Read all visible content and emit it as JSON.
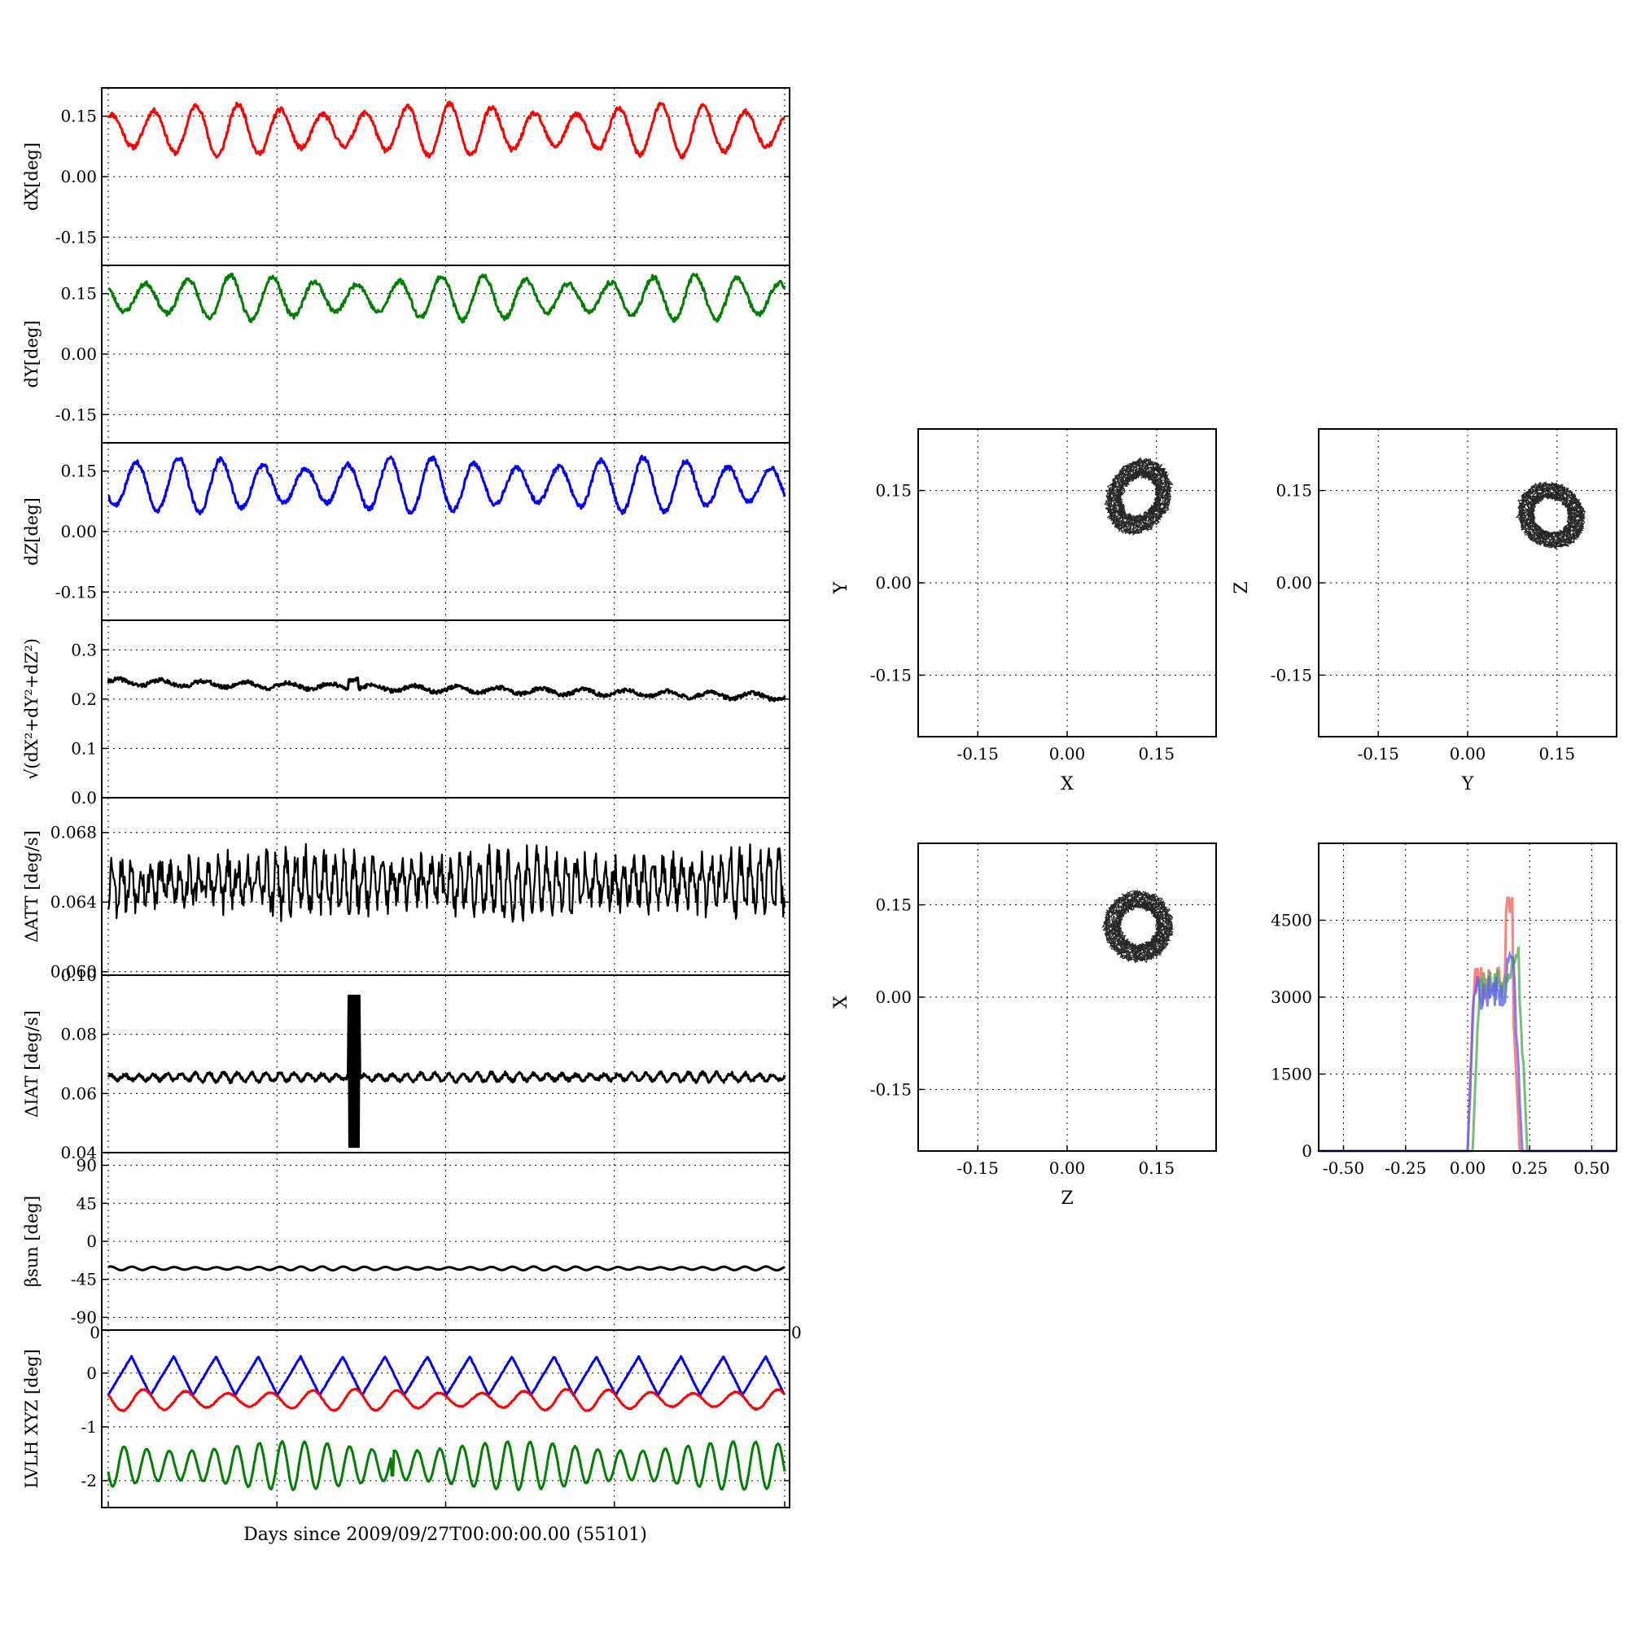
{
  "figure": {
    "xlabel": "Days since 2009/09/27T00:00:00.00 (55101)"
  },
  "chart_data": [
    {
      "id": "dx",
      "type": "line",
      "ylabel": "dX[deg]",
      "ylim": [
        -0.22,
        0.22
      ],
      "yticks": [
        "0.15",
        "0.00",
        "-0.15"
      ],
      "ytick_values": [
        0.15,
        0.0,
        -0.15
      ],
      "series": [
        {
          "color": "#ff0000",
          "mean": 0.115,
          "amp": 0.052,
          "cycles": 16,
          "noise": 0.006,
          "seed": 11
        }
      ],
      "grid": true
    },
    {
      "id": "dy",
      "type": "line",
      "ylabel": "dY[deg]",
      "ylim": [
        -0.22,
        0.22
      ],
      "yticks": [
        "0.15",
        "0.00",
        "-0.15"
      ],
      "ytick_values": [
        0.15,
        0.0,
        -0.15
      ],
      "series": [
        {
          "color": "#008000",
          "mean": 0.14,
          "amp": 0.045,
          "cycles": 16,
          "noise": 0.006,
          "seed": 23
        }
      ],
      "grid": true
    },
    {
      "id": "dz",
      "type": "line",
      "ylabel": "dZ[deg]",
      "ylim": [
        -0.22,
        0.22
      ],
      "yticks": [
        "0.15",
        "0.00",
        "-0.15"
      ],
      "ytick_values": [
        0.15,
        0.0,
        -0.15
      ],
      "series": [
        {
          "color": "#0000ff",
          "mean": 0.115,
          "amp": 0.055,
          "cycles": 16,
          "noise": 0.006,
          "seed": 37
        }
      ],
      "grid": true
    },
    {
      "id": "dtot",
      "type": "line",
      "ylabel": "√(dX²+dY²+dZ²)",
      "ylim": [
        0.0,
        0.36
      ],
      "yticks": [
        "0.3",
        "0.2",
        "0.1",
        "0.0"
      ],
      "ytick_values": [
        0.3,
        0.2,
        0.1,
        0.0
      ],
      "series": [
        {
          "color": "#000000",
          "start": 0.235,
          "end": 0.205,
          "amp": 0.006,
          "cycles": 16,
          "noise": 0.004,
          "seed": 41
        }
      ],
      "grid": true
    },
    {
      "id": "datt",
      "type": "line",
      "ylabel": "ΔATT [deg/s]",
      "ylim": [
        0.0598,
        0.07
      ],
      "yticks": [
        "0.068",
        "0.064",
        "0.060"
      ],
      "ytick_values": [
        0.068,
        0.064,
        0.06
      ],
      "series": [
        {
          "color": "#000000",
          "mean": 0.0651,
          "amp": 0.0012,
          "cycles": 70,
          "noise": 0.0009,
          "seed": 53
        }
      ],
      "grid": true
    },
    {
      "id": "diat",
      "type": "line",
      "ylabel": "ΔIAT [deg/s]",
      "ylim": [
        0.04,
        0.1
      ],
      "yticks": [
        "0.10",
        "0.08",
        "0.06",
        "0.04"
      ],
      "ytick_values": [
        0.1,
        0.08,
        0.06,
        0.04
      ],
      "series": [
        {
          "color": "#000000",
          "mean": 0.0655,
          "amp": 0.0012,
          "cycles": 48,
          "noise": 0.0006,
          "seed": 67,
          "burst": [
            0.355,
            0.372
          ]
        }
      ],
      "grid": true
    },
    {
      "id": "beta",
      "type": "line",
      "ylabel": "βsun [deg]",
      "ylim": [
        -105,
        105
      ],
      "yticks": [
        "90",
        "45",
        "0",
        "-45",
        "-90"
      ],
      "ytick_values": [
        90,
        45,
        0,
        -45,
        -90
      ],
      "series": [
        {
          "color": "#000000",
          "mean": -32,
          "amp": 1.8,
          "cycles": 32,
          "noise": 0.0,
          "seed": 71
        }
      ],
      "grid": true
    },
    {
      "id": "lvlh",
      "type": "line",
      "ylabel": "LVLH XYZ [deg]",
      "ylim": [
        -2.5,
        0.8
      ],
      "yticks": [
        "0",
        "-1",
        "-2"
      ],
      "ytick_values": [
        0,
        -1,
        -2
      ],
      "extra_tick": "0",
      "series": [
        {
          "color": "#0000ff",
          "mean": -0.05,
          "amp": 0.6,
          "cycles": 16,
          "noise": 0.01,
          "seed": 83,
          "shape": "saw"
        },
        {
          "color": "#ff0000",
          "mean": -0.5,
          "amp": 0.16,
          "cycles": 16,
          "noise": 0.01,
          "seed": 89,
          "shape": "sin"
        },
        {
          "color": "#008000",
          "mean": -1.72,
          "amp": 0.36,
          "cycles": 30,
          "noise": 0.01,
          "seed": 97,
          "shape": "sin",
          "spike": 0.42
        }
      ],
      "grid": true
    },
    {
      "id": "xy",
      "type": "scatter",
      "xlabel": "X",
      "ylabel": "Y",
      "xlim": [
        -0.25,
        0.25
      ],
      "ylim": [
        -0.25,
        0.25
      ],
      "xticks": [
        "-0.15",
        "0.00",
        "0.15"
      ],
      "yticks": [
        "0.15",
        "0.00",
        "-0.15"
      ],
      "tick_values": [
        -0.15,
        0.0,
        0.15
      ],
      "center": [
        0.12,
        0.14
      ],
      "radius": [
        0.045,
        0.055
      ],
      "tilt": -0.5,
      "grid": true
    },
    {
      "id": "yz",
      "type": "scatter",
      "xlabel": "Y",
      "ylabel": "Z",
      "xlim": [
        -0.25,
        0.25
      ],
      "ylim": [
        -0.25,
        0.25
      ],
      "xticks": [
        "-0.15",
        "0.00",
        "0.15"
      ],
      "yticks": [
        "0.15",
        "0.00",
        "-0.15"
      ],
      "tick_values": [
        -0.15,
        0.0,
        0.15
      ],
      "center": [
        0.14,
        0.11
      ],
      "radius": [
        0.05,
        0.045
      ],
      "tilt": -0.6,
      "grid": true
    },
    {
      "id": "zx",
      "type": "scatter",
      "xlabel": "Z",
      "ylabel": "X",
      "xlim": [
        -0.25,
        0.25
      ],
      "ylim": [
        -0.25,
        0.25
      ],
      "xticks": [
        "-0.15",
        "0.00",
        "0.15"
      ],
      "yticks": [
        "0.15",
        "0.00",
        "-0.15"
      ],
      "tick_values": [
        -0.15,
        0.0,
        0.15
      ],
      "center": [
        0.12,
        0.115
      ],
      "radius": [
        0.05,
        0.05
      ],
      "tilt": 0.2,
      "grid": true
    },
    {
      "id": "hist",
      "type": "line",
      "xlim": [
        -0.6,
        0.6
      ],
      "ylim": [
        0,
        6000
      ],
      "xticks": [
        "-0.50",
        "-0.25",
        "0.00",
        "0.25",
        "0.50"
      ],
      "xtick_values": [
        -0.5,
        -0.25,
        0.0,
        0.25,
        0.5
      ],
      "yticks": [
        "4500",
        "3000",
        "1500",
        "0"
      ],
      "ytick_values": [
        4500,
        3000,
        1500,
        0
      ],
      "series": [
        {
          "color": "#ff6060",
          "lo": 0.0,
          "hi": 0.21,
          "peak": 5000,
          "level": 3300,
          "seed": 101
        },
        {
          "color": "#50b050",
          "lo": 0.02,
          "hi": 0.24,
          "peak": 4100,
          "level": 3200,
          "seed": 103
        },
        {
          "color": "#6060ff",
          "lo": 0.0,
          "hi": 0.22,
          "peak": 3900,
          "level": 3100,
          "seed": 107
        }
      ],
      "grid": true
    }
  ]
}
